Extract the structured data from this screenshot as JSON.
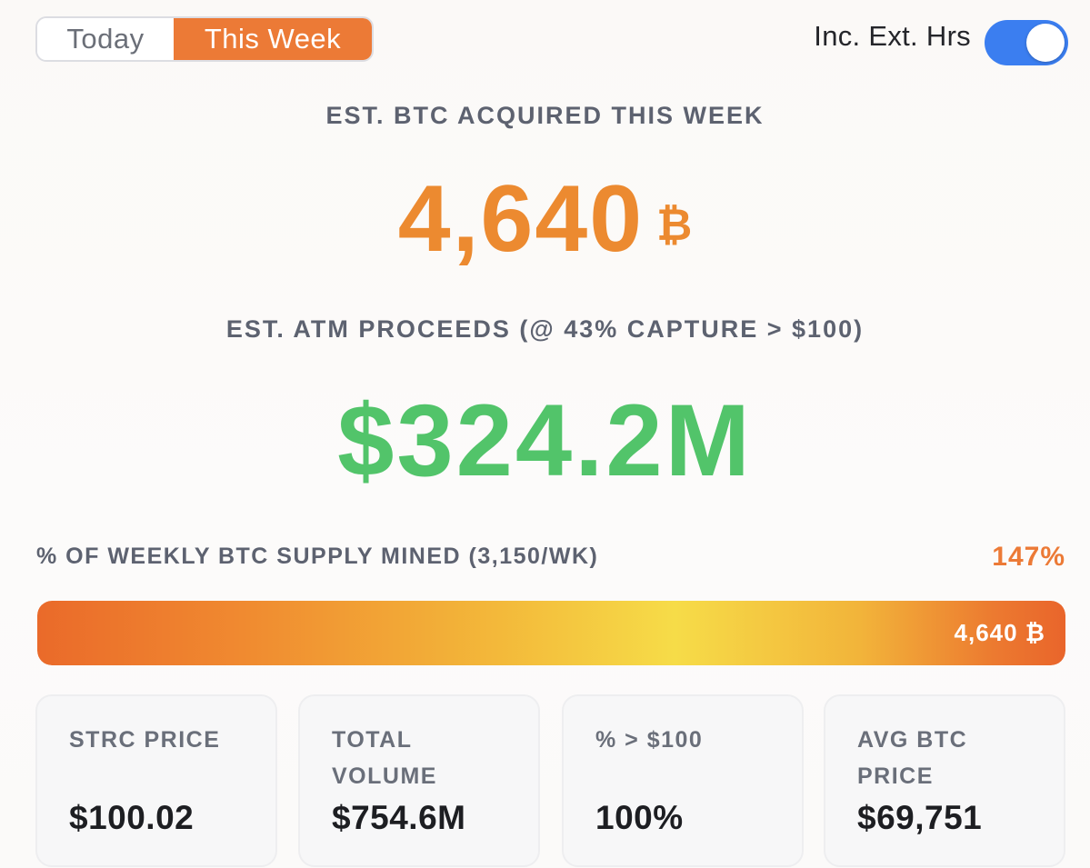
{
  "segmented": {
    "options": [
      "Today",
      "This Week"
    ],
    "selected": "This Week"
  },
  "toggle": {
    "label": "Inc. Ext. Hrs",
    "on": true
  },
  "acquired": {
    "heading": "EST. BTC ACQUIRED THIS WEEK",
    "value": "4,640",
    "unit": "₿"
  },
  "proceeds": {
    "heading": "EST. ATM PROCEEDS (@ 43% CAPTURE > $100)",
    "value": "$324.2M"
  },
  "supply": {
    "label": "% OF WEEKLY BTC SUPPLY MINED (3,150/WK)",
    "percent_label": "147%",
    "bar_value_label": "4,640 ₿",
    "fill_fraction": 1.0
  },
  "stats": [
    {
      "label": "STRC PRICE",
      "value": "$100.02"
    },
    {
      "label": "TOTAL VOLUME",
      "value": "$754.6M"
    },
    {
      "label": "% > $100",
      "value": "100%"
    },
    {
      "label": "AVG BTC PRICE",
      "value": "$69,751"
    }
  ],
  "colors": {
    "accent_orange": "#ec7a36",
    "btc_orange": "#ec8a30",
    "proceeds_green": "#52c46a",
    "toggle_blue": "#3b7ef0"
  }
}
